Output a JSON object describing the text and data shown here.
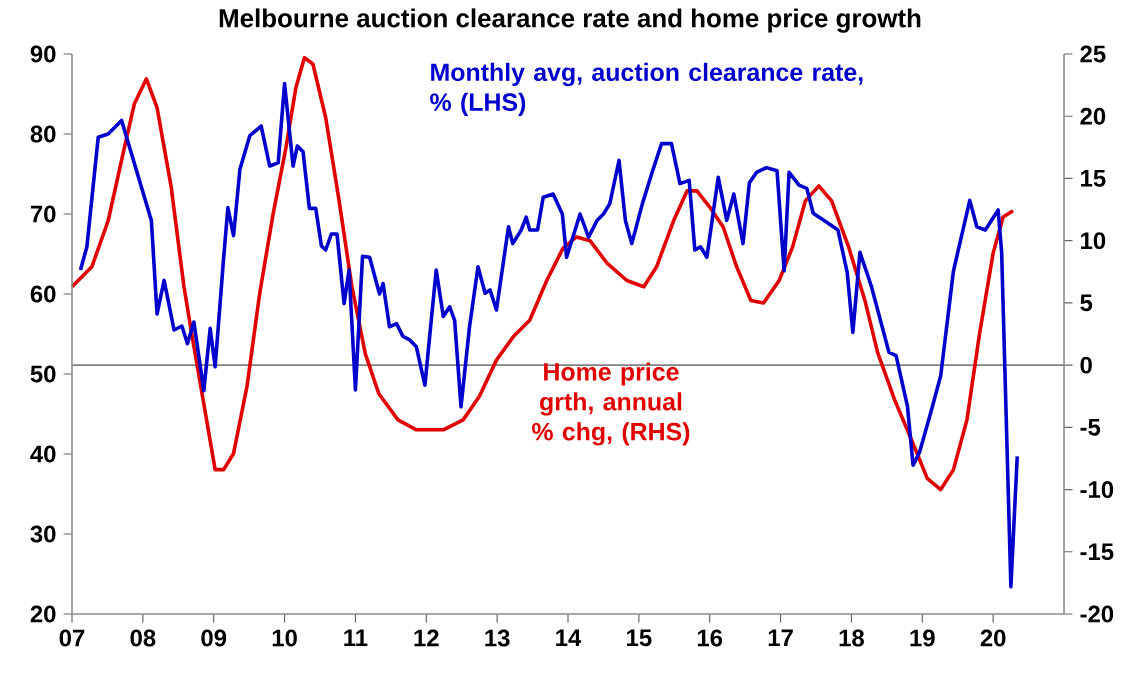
{
  "chart_data": {
    "type": "line",
    "title": "Melbourne auction clearance rate and home price growth",
    "xlim": [
      2007,
      2021
    ],
    "xticks": [
      {
        "value": 2007,
        "label": "07"
      },
      {
        "value": 2008,
        "label": "08"
      },
      {
        "value": 2009,
        "label": "09"
      },
      {
        "value": 2010,
        "label": "10"
      },
      {
        "value": 2011,
        "label": "11"
      },
      {
        "value": 2012,
        "label": "12"
      },
      {
        "value": 2013,
        "label": "13"
      },
      {
        "value": 2014,
        "label": "14"
      },
      {
        "value": 2015,
        "label": "15"
      },
      {
        "value": 2016,
        "label": "16"
      },
      {
        "value": 2017,
        "label": "17"
      },
      {
        "value": 2018,
        "label": "18"
      },
      {
        "value": 2019,
        "label": "19"
      },
      {
        "value": 2020,
        "label": "20"
      }
    ],
    "ylim": [
      20,
      90
    ],
    "yticks": [
      20,
      30,
      40,
      50,
      60,
      70,
      80,
      90
    ],
    "y2lim": [
      -20,
      25
    ],
    "y2ticks": [
      -20,
      -15,
      -10,
      -5,
      0,
      5,
      10,
      15,
      20,
      25
    ],
    "grid": false,
    "legend": false,
    "marker": "none",
    "line_style": "solid",
    "ref_lines": [
      {
        "axis": "y2",
        "value": 0,
        "color": "#808080"
      }
    ],
    "series": [
      {
        "name": "Monthly avg, auction clearance rate, % (LHS)",
        "color": "#0000cc",
        "axis": "y",
        "x": [
          2007.12,
          2007.21,
          2007.37,
          2007.51,
          2007.7,
          2008.12,
          2008.2,
          2008.3,
          2008.44,
          2008.55,
          2008.63,
          2008.72,
          2008.86,
          2008.95,
          2009.02,
          2009.14,
          2009.2,
          2009.28,
          2009.37,
          2009.51,
          2009.67,
          2009.79,
          2009.91,
          2010.0,
          2010.12,
          2010.18,
          2010.26,
          2010.35,
          2010.44,
          2010.52,
          2010.58,
          2010.66,
          2010.74,
          2010.84,
          2010.91,
          2011.0,
          2011.1,
          2011.2,
          2011.34,
          2011.39,
          2011.48,
          2011.58,
          2011.67,
          2011.76,
          2011.86,
          2011.98,
          2012.14,
          2012.24,
          2012.33,
          2012.4,
          2012.49,
          2012.61,
          2012.73,
          2012.83,
          2012.9,
          2012.99,
          2013.16,
          2013.22,
          2013.34,
          2013.41,
          2013.46,
          2013.57,
          2013.65,
          2013.79,
          2013.92,
          2013.98,
          2014.1,
          2014.17,
          2014.29,
          2014.41,
          2014.5,
          2014.59,
          2014.72,
          2014.81,
          2014.9,
          2015.05,
          2015.18,
          2015.32,
          2015.46,
          2015.58,
          2015.71,
          2015.79,
          2015.87,
          2015.96,
          2016.12,
          2016.24,
          2016.34,
          2016.47,
          2016.56,
          2016.66,
          2016.8,
          2016.95,
          2017.05,
          2017.12,
          2017.26,
          2017.37,
          2017.46,
          2017.63,
          2017.81,
          2017.94,
          2018.02,
          2018.12,
          2018.28,
          2018.53,
          2018.63,
          2018.79,
          2018.87,
          2018.96,
          2019.12,
          2019.26,
          2019.44,
          2019.67,
          2019.77,
          2019.89,
          2020.07,
          2020.12,
          2020.25,
          2020.34
        ],
        "values": [
          63,
          65.9,
          79.6,
          80,
          81.7,
          69.2,
          57.5,
          61.7,
          55.5,
          56,
          53.8,
          56.5,
          47.9,
          55.7,
          50.9,
          64.5,
          70.8,
          67.3,
          75.6,
          79.8,
          81,
          76,
          76.4,
          86.3,
          76,
          78.5,
          77.8,
          70.7,
          70.7,
          66,
          65.5,
          67.5,
          67.5,
          58.8,
          63,
          48,
          64.7,
          64.6,
          60,
          61.3,
          55.9,
          56.3,
          54.7,
          54.3,
          53.4,
          48.6,
          63,
          57.2,
          58.4,
          56.7,
          45.9,
          55.9,
          63.4,
          60.1,
          60.5,
          58,
          68.4,
          66.3,
          68,
          69.6,
          68,
          68,
          72.1,
          72.5,
          70,
          64.6,
          68,
          70,
          67.1,
          69.2,
          70,
          71.3,
          76.7,
          69.2,
          66.3,
          71.3,
          75,
          78.8,
          78.8,
          73.8,
          74.2,
          65.5,
          65.9,
          64.6,
          74.6,
          69.2,
          72.5,
          66.3,
          73.9,
          75.2,
          75.8,
          75.4,
          62.9,
          75.2,
          73.6,
          73.2,
          70.1,
          69.1,
          68,
          62.7,
          55.2,
          65.2,
          61,
          52.7,
          52.3,
          46,
          38.6,
          40.2,
          45.2,
          49.8,
          62.9,
          71.7,
          68.4,
          68,
          70.5,
          65.2,
          23.4,
          39.7
        ]
      },
      {
        "name": "Home price grth, annual % chg, (RHS)",
        "color": "#e00000",
        "axis": "y2",
        "x": [
          2007.0,
          2007.28,
          2007.51,
          2007.74,
          2007.88,
          2008.05,
          2008.2,
          2008.4,
          2008.58,
          2008.72,
          2008.86,
          2009.02,
          2009.14,
          2009.28,
          2009.47,
          2009.65,
          2009.84,
          2010.02,
          2010.16,
          2010.28,
          2010.4,
          2010.58,
          2010.77,
          2010.95,
          2011.14,
          2011.33,
          2011.6,
          2011.86,
          2012.24,
          2012.52,
          2012.75,
          2012.99,
          2013.23,
          2013.46,
          2013.7,
          2013.93,
          2014.12,
          2014.31,
          2014.55,
          2014.83,
          2015.07,
          2015.25,
          2015.49,
          2015.68,
          2015.82,
          2016.0,
          2016.19,
          2016.38,
          2016.58,
          2016.76,
          2016.98,
          2017.17,
          2017.35,
          2017.54,
          2017.72,
          2017.96,
          2018.19,
          2018.37,
          2018.61,
          2018.84,
          2019.07,
          2019.26,
          2019.44,
          2019.63,
          2019.81,
          2020.0,
          2020.14,
          2020.28
        ],
        "values": [
          6.3,
          7.9,
          11.6,
          17.5,
          21,
          23,
          20.7,
          14.3,
          6.3,
          1.5,
          -3.1,
          -8.4,
          -8.4,
          -7.1,
          -1.7,
          5.8,
          12.2,
          17.5,
          22.3,
          24.7,
          24.2,
          19.9,
          13.2,
          6.3,
          0.9,
          -2.3,
          -4.4,
          -5.2,
          -5.2,
          -4.4,
          -2.5,
          0.4,
          2.3,
          3.6,
          6.8,
          9.4,
          10.3,
          10,
          8.2,
          6.8,
          6.3,
          7.9,
          11.6,
          14,
          14,
          12.7,
          11.1,
          7.9,
          5.2,
          5,
          6.8,
          9.5,
          13.2,
          14.4,
          13.2,
          9.5,
          5.2,
          1,
          -2.8,
          -5.9,
          -9.1,
          -10,
          -8.4,
          -4.4,
          2.6,
          9,
          11.9,
          12.4
        ]
      }
    ]
  }
}
